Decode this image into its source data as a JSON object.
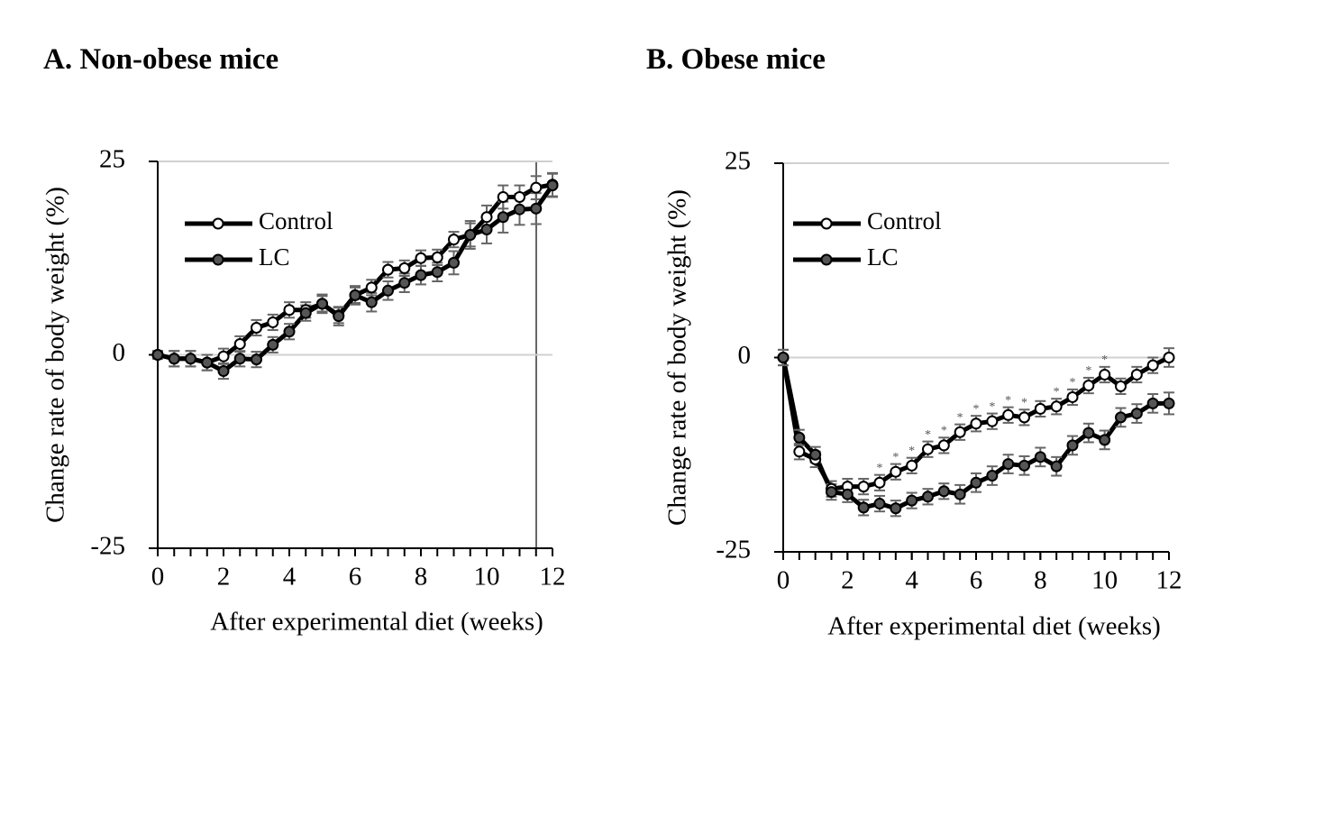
{
  "chart_data": [
    {
      "type": "line",
      "title": "A.  Non-obese mice",
      "xlabel": "After experimental diet (weeks)",
      "ylabel": "Change rate of body weight (%)",
      "x": [
        0,
        0.5,
        1,
        1.5,
        2,
        2.5,
        3,
        3.5,
        4,
        4.5,
        5,
        5.5,
        6,
        6.5,
        7,
        7.5,
        8,
        8.5,
        9,
        9.5,
        10,
        10.5,
        11,
        11.5,
        12
      ],
      "xlim": [
        0,
        12
      ],
      "xticks": [
        0,
        2,
        4,
        6,
        8,
        10,
        12
      ],
      "ylim": [
        -25,
        25
      ],
      "yticks": [
        25,
        0,
        -25
      ],
      "grid": true,
      "legend": "upper left",
      "series": [
        {
          "name": "Control",
          "color": "#ffffff",
          "values": [
            0,
            -0.5,
            -0.5,
            -1,
            -0.2,
            1.4,
            3.5,
            4.2,
            5.8,
            5.8,
            6.6,
            5.1,
            7.7,
            8.7,
            11,
            11.2,
            12.5,
            12.6,
            14.9,
            15.5,
            17.8,
            20.4,
            20.4,
            21.6,
            22
          ],
          "errors": [
            0.5,
            1,
            1,
            1,
            1,
            1,
            1,
            1,
            1,
            1,
            1,
            1,
            1,
            1,
            1,
            1,
            1,
            1,
            1,
            1.5,
            1.5,
            1.5,
            1.5,
            1.5,
            1.5
          ]
        },
        {
          "name": "LC",
          "color": "#555555",
          "values": [
            0,
            -0.5,
            -0.5,
            -1,
            -2.1,
            -0.5,
            -0.6,
            1.3,
            3,
            5.4,
            6.6,
            5,
            7.7,
            6.8,
            8.3,
            9.3,
            10.3,
            10.7,
            11.9,
            15.5,
            16.2,
            17.8,
            18.8,
            18.9,
            21.9
          ],
          "errors": [
            0.5,
            1,
            1,
            1,
            1,
            1,
            1,
            1,
            1,
            1,
            1.2,
            1.2,
            1.2,
            1.2,
            1.2,
            1.2,
            1.2,
            1.2,
            1.5,
            1.8,
            1.8,
            2,
            2,
            2,
            1.5
          ]
        }
      ]
    },
    {
      "type": "line",
      "title": "B.  Obese mice",
      "xlabel": "After experimental diet (weeks)",
      "ylabel": "Change rate of body weight (%)",
      "x": [
        0,
        0.5,
        1,
        1.5,
        2,
        2.5,
        3,
        3.5,
        4,
        4.5,
        5,
        5.5,
        6,
        6.5,
        7,
        7.5,
        8,
        8.5,
        9,
        9.5,
        10,
        10.5,
        11,
        11.5,
        12
      ],
      "xlim": [
        0,
        12
      ],
      "xticks": [
        0,
        2,
        4,
        6,
        8,
        10,
        12
      ],
      "ylim": [
        -25,
        25
      ],
      "yticks": [
        25,
        0,
        -25
      ],
      "grid": true,
      "legend": "upper left",
      "series": [
        {
          "name": "Control",
          "color": "#ffffff",
          "values": [
            0,
            -12.1,
            -13.1,
            -16.9,
            -16.6,
            -16.6,
            -16.1,
            -14.7,
            -13.9,
            -11.8,
            -11.3,
            -9.6,
            -8.5,
            -8.2,
            -7.4,
            -7.7,
            -6.6,
            -6.3,
            -5.1,
            -3.6,
            -2.2,
            -3.7,
            -2.2,
            -1,
            0
          ],
          "errors": [
            1,
            1,
            1,
            1,
            1,
            1,
            1,
            1,
            1,
            1,
            1,
            1,
            1,
            1,
            1,
            1,
            1,
            1,
            1,
            1,
            1,
            1,
            1,
            1,
            1.2
          ]
        },
        {
          "name": "LC",
          "color": "#555555",
          "values": [
            0,
            -10.3,
            -12.5,
            -17.3,
            -17.6,
            -19.3,
            -18.8,
            -19.4,
            -18.4,
            -17.9,
            -17.2,
            -17.6,
            -16.1,
            -15.2,
            -13.7,
            -13.9,
            -12.8,
            -14,
            -11.3,
            -9.7,
            -10.6,
            -7.7,
            -7.2,
            -5.9,
            -5.9
          ],
          "errors": [
            1,
            1,
            1,
            1,
            1,
            1,
            1,
            1,
            1,
            1,
            1,
            1.2,
            1.2,
            1.2,
            1.2,
            1.2,
            1.2,
            1.2,
            1.2,
            1.2,
            1.2,
            1.2,
            1.2,
            1.2,
            1.4
          ]
        }
      ],
      "significance": {
        "label": "*",
        "x": [
          3,
          3.5,
          4,
          4.5,
          5,
          5.5,
          6,
          6.5,
          7,
          7.5,
          8.5,
          9,
          9.5,
          10
        ]
      }
    }
  ]
}
